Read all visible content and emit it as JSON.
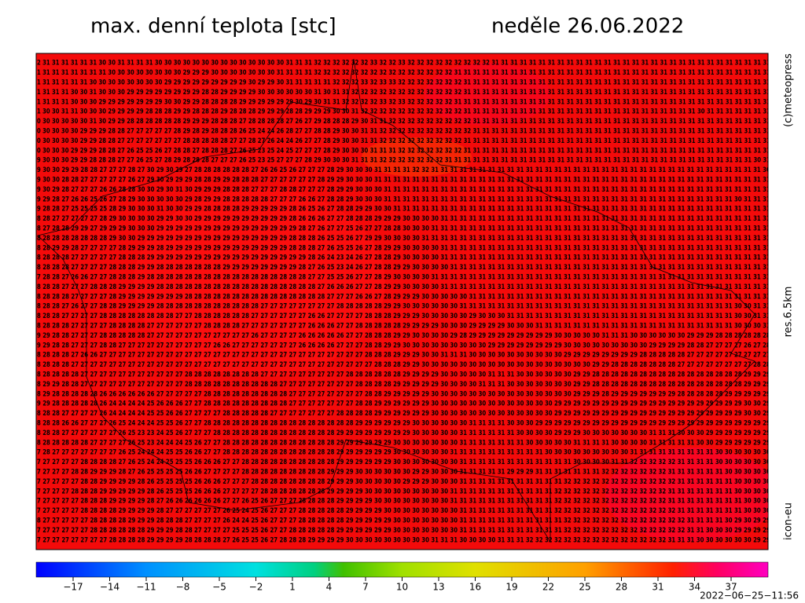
{
  "header": {
    "title": "max. denní teplota [stc]",
    "date": "neděle 26.06.2022"
  },
  "side_labels": [
    "(c)meteopress",
    "res.6.5km",
    "icon-eu"
  ],
  "map": {
    "rows": [
      "2 31 31 31 31 31 31 30 30 31 31 31 31 30 30 30 30 30 30 30 30 30 30 30 30 30 30 31 31 31 32 32 32 32 32 32 33 32 32 33 32 32 32 32 32 32 32 32 32 31 31 31 31 31 31 31 31 31 31 31 31 31 31 31 31 31 31 31 31 31 31 31 31 31 31 31 31 31 31 3",
      "1 31 31 31 31 31 31 31 30 30 30 30 30 30 30 30 29 29 29 30 30 30 30 30 30 30 31 31 31 31 32 32 32 32 32 32 32 32 32 32 32 32 32 32 32 31 31 31 31 31 31 31 31 31 31 31 31 31 31 31 31 31 31 31 31 31 31 31 31 31 31 31 31 31 31 31 31 31 31 3",
      "1 31 31 31 31 31 30 30 30 30 30 30 30 30 29 29 29 29 29 29 29 29 29 30 29 29 30 31 31 31 31 31 32 32 32 33 32 33 33 32 32 32 32 32 32 32 31 31 31 31 31 31 31 31 31 31 31 31 31 31 31 31 31 31 31 31 31 31 31 31 31 31 31 31 31 31 31 31 31 3",
      "1 31 31 31 30 30 31 30 30 30 29 29 29 29 29 29 29 29 28 28 29 29 29 29 30 30 30 30 30 30 31 30 31 31 32 32 32 32 32 32 32 32 32 32 32 32 31 31 31 31 31 31 31 31 31 31 31 31 31 31 31 31 31 31 31 31 31 31 31 31 31 31 31 31 31 31 31 31 31 3",
      "1 31 31 31 30 30 30 29 29 29 29 29 29 29 30 30 29 29 28 28 28 28 29 29 29 29 29 29 30 29 30 31 31 32 32 32 32 33 32 33 32 32 32 32 32 31 31 31 31 31 31 31 31 31 31 31 31 31 31 31 31 31 31 31 31 31 31 31 31 31 31 31 31 31 31 31 31 31 31 3",
      "1 30 30 31 31 30 30 30 29 29 29 29 28 28 28 29 29 28 28 28 29 28 28 28 29 29 29 28 28 29 29 29 30 30 31 32 32 32 32 32 32 32 32 32 32 32 31 31 31 31 31 31 31 31 31 31 31 31 31 31 31 31 31 31 31 31 31 31 31 31 31 30 31 31 31 31 31 31 31 3",
      "0 30 30 30 30 30 31 30 29 29 28 28 28 28 28 28 29 29 29 28 28 28 27 28 28 28 28 27 26 27 29 28 28 28 29 30 31 31 32 32 32 32 32 32 32 32 32 31 31 31 31 31 31 31 31 31 31 31 31 31 31 31 31 31 31 31 31 31 31 31 31 31 31 31 31 31 31 31 31 3",
      "0 30 30 30 30 29 29 29 28 28 27 27 27 27 27 28 29 28 29 28 28 28 26 25 24 24 26 28 27 27 28 28 29 30 30 31 31 32 32 32 32 32 32 32 32 32 32 31 31 31 31 31 31 31 31 31 31 31 31 31 31 31 31 31 31 31 31 31 31 31 31 31 31 31 31 31 31 31 31 3",
      "0 30 30 30 30 29 29 28 28 27 27 27 27 27 27 27 28 28 28 28 28 27 27 28 27 26 24 24 26 27 27 28 29 30 30 31 31 32 32 32 32 32 32 32 32 32 31 31 31 31 31 31 31 31 31 31 31 31 31 31 31 31 31 31 31 31 31 31 31 31 31 31 31 31 31 31 31 31 31 3",
      "0 30 30 30 29 29 29 28 28 27 26 25 25 26 27 28 28 27 28 28 28 27 26 25 23 25 24 25 27 27 27 28 29 30 30 30 31 31 31 32 32 32 32 32 32 32 31 31 31 31 31 31 31 31 31 31 31 31 31 31 31 31 31 31 31 31 31 31 31 31 31 31 31 31 31 31 31 31 31 3",
      "9 30 30 30 29 29 28 28 28 27 27 26 25 27 28 29 28 28 28 27 27 27 26 25 23 25 27 27 27 28 29 30 30 30 31 31 31 32 32 32 32 32 32 32 31 31 31 31 31 31 31 31 31 31 31 31 31 31 31 31 31 31 31 31 31 31 31 31 31 31 31 31 31 31 31 31 31 30 31 3",
      "9 30 30 29 29 28 28 27 27 27 28 27 30 29 30 29 27 28 28 28 28 28 28 27 26 26 25 26 27 27 27 28 29 30 30 30 31 31 31 31 32 32 31 31 31 31 31 31 31 31 31 31 31 31 31 31 31 31 31 31 31 31 31 31 31 31 31 31 31 31 31 31 31 31 31 31 31 30 2",
      "9 30 30 28 28 27 27 27 27 27 26 27 29 30 29 29 29 28 28 29 29 28 28 28 27 27 27 27 27 27 28 29 29 30 30 30 31 31 31 31 31 31 31 31 31 31 31 31 31 31 31 31 31 31 31 31 31 31 31 31 31 31 31 31 31 31 31 31 31 31 31 31 31 31 31 31 31 31 3",
      "9 30 29 28 27 27 27 26 26 28 28 30 30 29 30 31 30 29 29 29 28 28 28 27 27 27 28 28 27 27 27 28 29 29 30 30 30 31 31 31 31 31 31 31 31 31 31 31 31 31 31 31 31 31 31 31 31 31 31 31 31 31 31 31 31 31 31 31 31 31 31 31 31 31 31 31 31 31 3",
      "9 29 28 27 26 26 25 26 27 28 29 30 30 30 30 30 29 28 29 29 28 28 28 28 28 27 27 27 26 26 27 28 28 29 30 30 30 31 31 31 31 31 31 31 31 31 31 31 31 31 31 31 31 31 31 31 31 31 31 31 31 31 31 31 31 31 31 31 31 31 31 31 31 31 30 31 31 31 3",
      "9 28 28 27 25 25 25 25 28 29 30 30 30 31 30 30 29 29 28 28 28 28 29 29 29 29 29 28 26 25 26 27 28 28 29 29 30 30 31 31 31 31 31 31 31 31 31 31 31 31 31 31 31 31 31 31 31 31 31 31 31 31 31 31 31 31 31 31 31 31 31 31 31 31 31 31 31 31 3",
      "8 28 27 27 27 27 27 28 29 30 30 30 30 29 29 30 30 29 29 29 29 29 29 29 29 29 29 28 26 26 26 27 27 28 28 28 29 29 29 30 30 30 30 31 31 31 31 31 31 31 31 31 31 31 31 31 31 31 31 31 31 31 31 31 31 31 31 31 31 31 31 31 31 31 31 31 31 31 3",
      "8 27 28 28 29 29 27 29 29 29 30 30 30 29 29 29 29 29 29 29 29 29 29 29 29 29 29 29 28 27 26 27 27 25 26 27 27 28 28 30 30 30 31 31 31 31 31 31 31 31 31 31 31 31 31 31 31 31 31 31 31 31 31 31 31 31 31 31 31 31 31 31 31 31 31 31 31 31 3",
      "8 28 28 28 28 28 28 28 29 30 30 29 29 29 29 29 29 29 29 29 29 29 29 29 29 29 29 28 28 28 26 25 25 26 27 29 29 30 30 30 30 31 31 31 31 31 31 31 31 31 31 31 31 31 31 31 31 31 31 31 31 31 31 31 31 31 31 31 31 31 31 31 31 31 31 31 31 31 3",
      "8 28 29 29 28 27 27 27 27 28 29 29 29 28 29 29 29 29 29 29 29 29 29 29 29 29 29 28 28 28 27 26 25 25 26 27 28 29 29 30 30 30 30 31 31 31 31 31 31 31 31 31 31 31 31 31 31 31 31 31 31 31 31 31 31 31 31 31 31 31 31 31 31 31 31 31 31 31 3",
      "8 28 28 28 27 27 27 27 27 28 28 28 29 29 29 29 29 29 29 29 29 29 29 29 29 29 29 29 29 28 26 24 23 24 26 27 28 28 29 30 30 30 30 31 31 31 31 31 31 31 31 31 31 31 31 31 31 31 31 31 31 31 31 31 31 31 31 31 31 31 31 31 31 31 31 31 31 31 3",
      "8 28 28 28 27 27 27 27 28 28 28 29 29 28 28 28 28 28 28 28 29 29 29 29 29 29 29 29 28 27 26 25 23 24 26 27 28 28 29 29 30 30 30 30 31 31 31 31 31 31 31 31 31 31 31 31 31 31 31 31 31 31 31 31 31 31 31 31 31 31 31 31 31 31 31 31 31 31 3",
      "7 28 28 27 26 26 27 27 28 28 28 29 28 28 28 28 28 28 28 28 28 28 28 28 28 28 28 28 28 27 27 25 25 26 27 27 28 29 30 30 30 30 31 31 31 31 31 31 31 31 31 31 31 31 31 31 31 31 31 31 31 31 31 31 31 31 31 31 31 31 31 31 31 31 31 31 31 31 3",
      "8 28 28 27 27 27 28 28 28 29 29 29 29 28 28 28 28 28 28 28 28 28 28 28 28 28 28 28 28 28 27 26 26 26 27 27 28 29 29 30 30 30 30 31 31 31 31 31 31 31 31 31 31 31 31 31 31 31 31 31 31 31 31 31 31 31 31 31 31 31 31 31 31 31 31 31 31 31 3",
      "8 28 28 28 27 27 27 27 28 29 29 29 29 29 29 29 28 28 28 28 28 28 28 28 28 28 28 28 28 28 28 27 27 27 26 26 27 28 29 29 29 30 30 30 30 30 31 31 31 31 31 31 31 31 31 31 31 31 31 31 31 31 31 31 31 31 31 31 31 31 31 31 31 31 31 31 31 31 3",
      "8 28 28 27 26 27 27 28 28 29 29 29 29 28 28 28 28 28 28 28 28 28 28 28 27 27 27 27 27 27 27 27 28 28 28 28 28 29 29 30 30 30 30 30 30 31 31 31 31 31 31 31 31 31 31 31 31 31 31 31 31 31 31 31 31 31 31 31 31 31 31 31 31 31 30 30 31 31 3",
      "8 28 28 27 27 27 27 28 28 28 28 28 28 28 28 27 27 28 28 28 28 28 28 27 27 27 27 27 27 26 26 27 27 27 27 28 28 28 29 29 29 30 30 30 30 30 29 30 30 30 31 31 31 31 31 31 31 31 31 31 31 31 31 31 31 31 31 31 31 31 31 31 31 31 30 30 31 31 3",
      "8 28 28 28 27 27 27 27 28 28 28 28 27 27 27 27 27 27 28 28 28 28 27 27 27 27 27 27 27 26 26 26 27 27 28 28 28 28 28 29 29 29 29 30 30 30 29 29 29 29 30 30 30 31 31 31 31 31 31 31 31 31 31 31 31 31 31 31 31 31 31 31 31 31 30 30 30 31 3",
      "9 29 28 28 27 27 27 28 28 28 28 28 27 27 27 27 27 27 27 27 27 27 27 26 27 27 27 27 26 26 26 26 26 27 27 28 28 28 29 29 30 30 30 30 29 28 29 29 29 29 29 29 29 29 29 30 30 30 30 30 31 31 31 30 30 30 30 30 30 29 29 29 28 28 28 28 28 28 2",
      "9 29 28 28 27 27 27 28 28 27 27 27 27 27 27 27 27 27 27 26 26 27 27 27 27 27 27 27 26 26 26 26 27 27 27 28 28 29 29 30 30 30 30 30 30 30 30 30 29 29 29 29 29 29 29 29 30 30 30 30 30 30 30 30 30 29 29 29 29 28 28 27 27 27 27 26 27 28 2",
      "8 28 28 28 27 26 26 27 27 27 27 27 27 27 27 27 27 27 27 27 27 27 27 27 27 27 27 27 27 27 27 27 27 27 27 28 28 28 29 29 29 30 30 31 31 31 30 30 30 30 30 30 30 30 30 30 29 29 29 29 29 29 29 29 28 28 28 28 28 27 27 27 27 27 27 27 27 27 2",
      "8 28 28 28 27 27 27 27 27 27 27 27 27 27 27 27 27 27 27 27 27 27 27 27 27 27 27 27 27 27 27 27 27 27 27 27 28 28 28 29 29 30 30 30 30 30 30 30 30 30 30 30 30 30 30 30 30 30 30 29 29 28 28 28 28 28 28 28 27 27 27 27 27 27 27 27 28 28 2",
      "8 28 28 28 28 27 27 27 27 27 27 27 27 27 27 27 28 28 28 28 28 28 28 28 27 27 27 27 27 27 27 27 27 28 28 28 28 28 28 29 29 29 29 30 30 30 30 30 31 31 31 30 30 30 30 30 30 29 29 28 28 28 28 28 28 28 28 28 28 28 28 28 28 28 28 29 29 29 2",
      "8 29 29 28 28 27 27 27 27 27 27 27 27 27 27 27 28 28 28 28 28 28 28 28 28 28 27 27 27 27 27 27 27 27 28 28 28 28 29 29 29 29 29 30 30 30 30 31 31 31 30 30 30 30 30 30 30 29 29 28 28 28 28 28 28 28 28 28 28 28 28 28 28 28 28 29 29 29 2",
      "8 29 28 28 28 28 28 26 26 26 26 26 26 27 27 27 27 27 28 28 28 28 28 28 28 28 28 27 27 27 27 27 27 27 27 28 28 29 29 29 29 29 30 30 30 30 30 30 30 30 30 30 30 30 30 30 30 29 29 29 28 29 29 29 29 29 29 29 28 28 28 28 28 29 29 29 29 29 2",
      "9 29 28 28 28 28 28 26 24 24 24 24 25 26 26 26 27 27 28 28 28 28 28 28 28 28 28 27 27 27 27 27 27 27 28 28 29 29 29 29 29 29 30 30 30 30 30 30 30 30 30 30 30 30 30 29 29 29 29 29 29 29 29 29 29 29 29 29 29 29 29 29 29 29 29 30 30 29 2",
      "8 28 28 27 27 27 27 26 24 24 24 24 25 25 26 26 27 27 27 27 28 28 28 28 28 27 27 27 27 27 27 27 28 28 28 28 29 29 29 29 29 29 30 30 30 30 30 30 30 30 30 30 30 30 30 29 29 29 29 29 29 29 29 29 29 29 29 29 29 29 29 29 29 29 29 30 30 29 2",
      "8 28 28 26 26 27 27 27 26 25 24 24 24 25 25 26 27 27 28 28 28 28 28 28 28 28 28 28 28 28 28 28 28 28 29 29 29 29 29 29 30 30 30 30 30 30 31 31 31 31 30 30 30 29 29 29 29 29 29 29 29 29 29 29 29 29 29 29 29 29 29 29 29 29 29 29 29 29 3",
      "8 28 28 27 27 27 27 27 27 26 25 23 23 24 25 26 27 27 27 28 28 28 28 28 28 28 28 28 28 28 28 28 29 29 29 29 29 29 29 29 30 30 30 30 30 31 31 31 31 31 31 30 30 30 30 29 29 29 30 30 30 30 30 30 30 31 31 31 30 30 30 29 29 29 29 29 29 29 2",
      "8 28 28 28 28 28 27 27 27 27 26 25 23 24 24 24 25 26 27 27 28 28 28 28 28 28 28 28 28 28 28 28 29 29 29 29 29 29 30 30 30 30 30 30 30 31 31 31 31 31 31 31 30 30 30 30 30 31 31 31 31 30 30 30 30 31 31 31 31 31 30 30 29 29 29 29 29 29 3",
      "7 28 27 27 27 27 27 27 27 26 25 24 24 24 25 25 26 26 27 27 28 28 28 28 28 28 28 28 28 28 28 28 29 29 29 29 29 29 30 30 30 30 30 30 31 31 31 31 31 31 31 31 31 31 30 30 30 30 30 30 30 30 30 31 31 31 31 31 31 31 31 31 30 30 30 30 30 30 3",
      "7 27 27 27 27 28 28 28 28 27 26 25 24 24 25 25 25 26 26 26 27 27 28 28 28 28 28 28 28 28 28 28 29 29 29 29 29 29 30 30 30 30 30 30 30 31 31 31 31 31 31 31 31 31 31 31 31 30 30 30 30 31 31 32 32 32 32 32 31 31 31 31 30 30 30 30 30 30 3",
      "7 27 27 27 28 28 29 29 29 28 27 26 25 25 25 25 26 26 27 27 27 27 28 28 28 28 28 28 28 28 28 29 29 29 30 30 30 30 30 30 29 29 30 30 30 31 31 31 31 31 29 29 29 31 31 31 31 31 31 31 32 32 32 32 32 32 32 31 31 31 31 31 31 30 30 30 30 30 3",
      "7 27 27 27 27 28 28 29 29 29 29 28 26 25 25 25 25 26 26 26 27 27 27 28 28 28 28 28 28 28 28 29 29 29 30 30 30 30 30 29 29 29 30 30 30 31 31 31 31 31 31 31 31 31 31 31 32 32 32 32 32 32 32 32 32 32 32 32 31 31 31 31 31 31 30 30 30 30 3",
      "7 27 27 27 28 28 28 29 29 29 29 29 28 26 25 25 25 26 26 26 27 27 27 27 28 28 28 28 28 28 28 29 29 29 29 30 30 30 30 30 30 30 30 30 31 31 31 31 31 31 31 31 31 31 31 32 32 32 32 32 32 32 32 32 32 32 32 31 31 31 31 31 31 31 30 30 30 30 3",
      "7 27 27 27 27 28 28 28 29 29 29 29 28 27 26 26 26 26 26 26 27 27 26 25 26 27 27 27 28 28 28 28 29 29 29 29 30 30 30 30 30 30 30 30 31 31 31 31 31 31 31 31 31 31 31 32 32 32 32 32 32 32 32 32 32 32 32 31 31 31 31 31 31 31 31 30 30 30 3",
      "7 27 27 27 27 28 28 28 28 29 29 29 29 28 27 27 27 27 27 27 26 25 24 25 26 27 27 27 28 28 28 28 28 29 29 29 29 30 30 30 30 30 30 30 30 31 31 31 31 31 31 31 31 31 31 32 32 32 32 32 32 32 32 32 32 32 32 32 31 31 31 31 31 31 31 30 30 30 3",
      "8 27 27 27 27 27 28 28 28 28 29 29 29 28 28 28 27 27 27 27 26 24 24 25 26 27 27 27 28 28 28 28 28 29 29 29 29 29 30 30 30 30 30 30 30 31 31 31 31 31 31 31 31 31 31 31 32 32 32 32 32 32 32 32 32 32 32 32 32 31 31 31 31 30 29 30 29 29 3",
      "7 27 27 27 27 27 28 28 28 28 28 28 29 29 29 28 28 27 27 27 27 25 25 25 26 27 27 28 28 28 28 28 29 29 29 29 29 29 30 30 30 30 30 30 30 31 31 31 31 31 31 31 31 31 31 31 32 32 32 32 32 32 32 32 32 32 32 32 32 31 31 30 30 30 29 29 29 29 3",
      "7 27 27 27 27 27 27 27 28 28 28 28 29 29 29 29 28 28 28 28 27 26 25 25 26 27 28 28 28 29 29 29 29 30 30 30 30 30 30 30 30 30 31 31 31 30 30 30 30 31 31 31 32 32 32 32 32 32 32 32 32 32 32 32 32 32 32 31 31 31 30 30 30 30 30 30 29 29 2"
    ]
  },
  "colorbar": {
    "ticks": [
      "−17",
      "−14",
      "−11",
      "−8",
      "−5",
      "−2",
      "1",
      "4",
      "7",
      "10",
      "13",
      "16",
      "19",
      "22",
      "25",
      "28",
      "31",
      "34",
      "37"
    ]
  },
  "footer": {
    "timestamp": "2022−06−25−11:56"
  }
}
